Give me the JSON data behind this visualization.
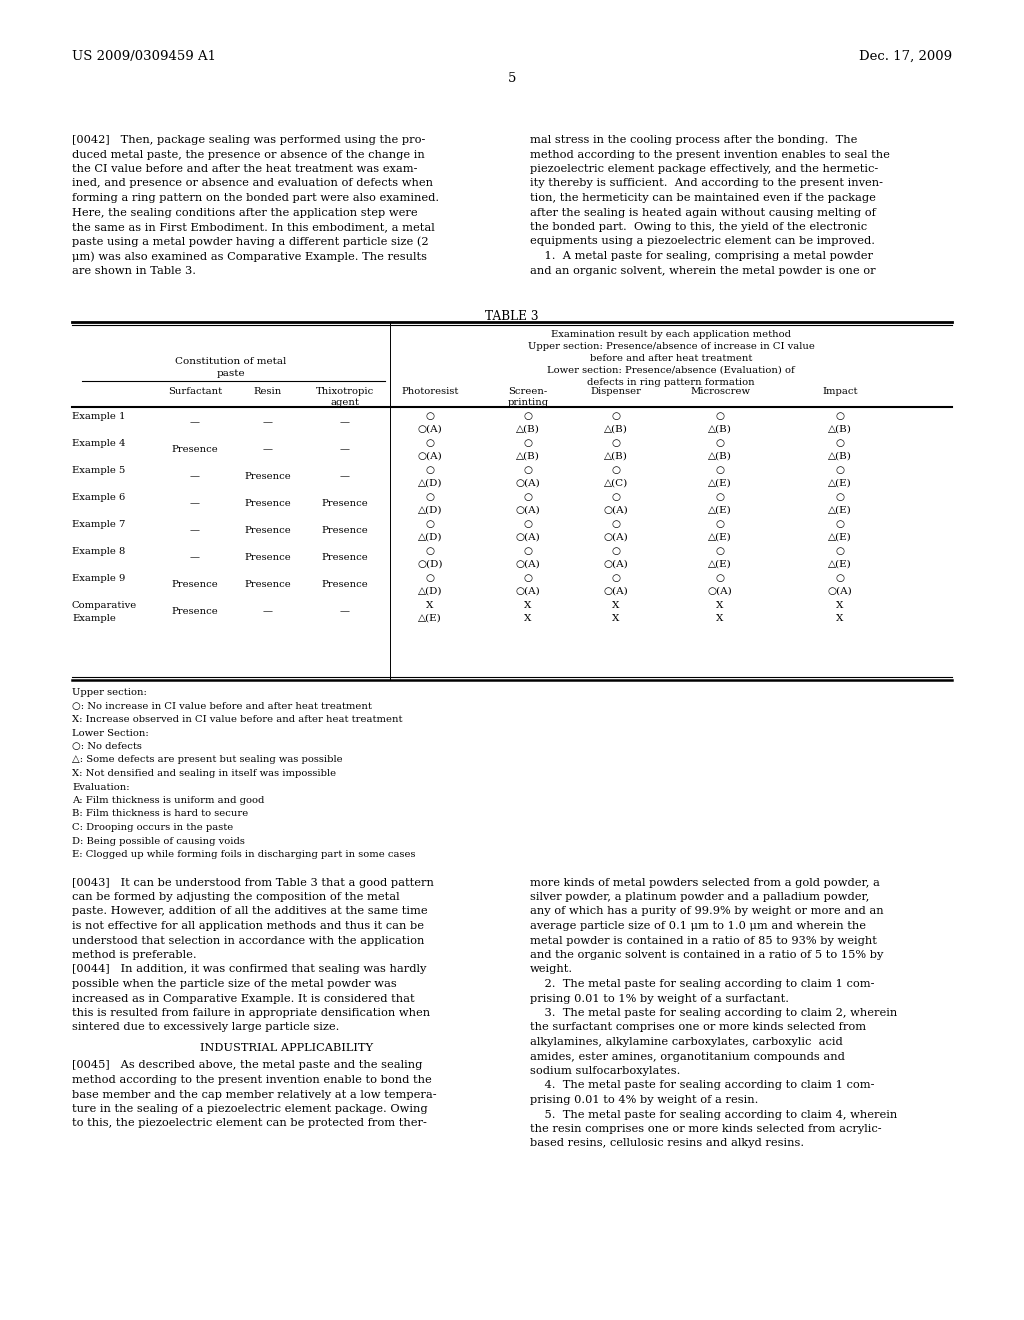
{
  "bg_color": "#ffffff",
  "page_width": 10.24,
  "page_height": 13.2,
  "header_left": "US 2009/0309459 A1",
  "header_right": "Dec. 17, 2009",
  "page_number": "5"
}
